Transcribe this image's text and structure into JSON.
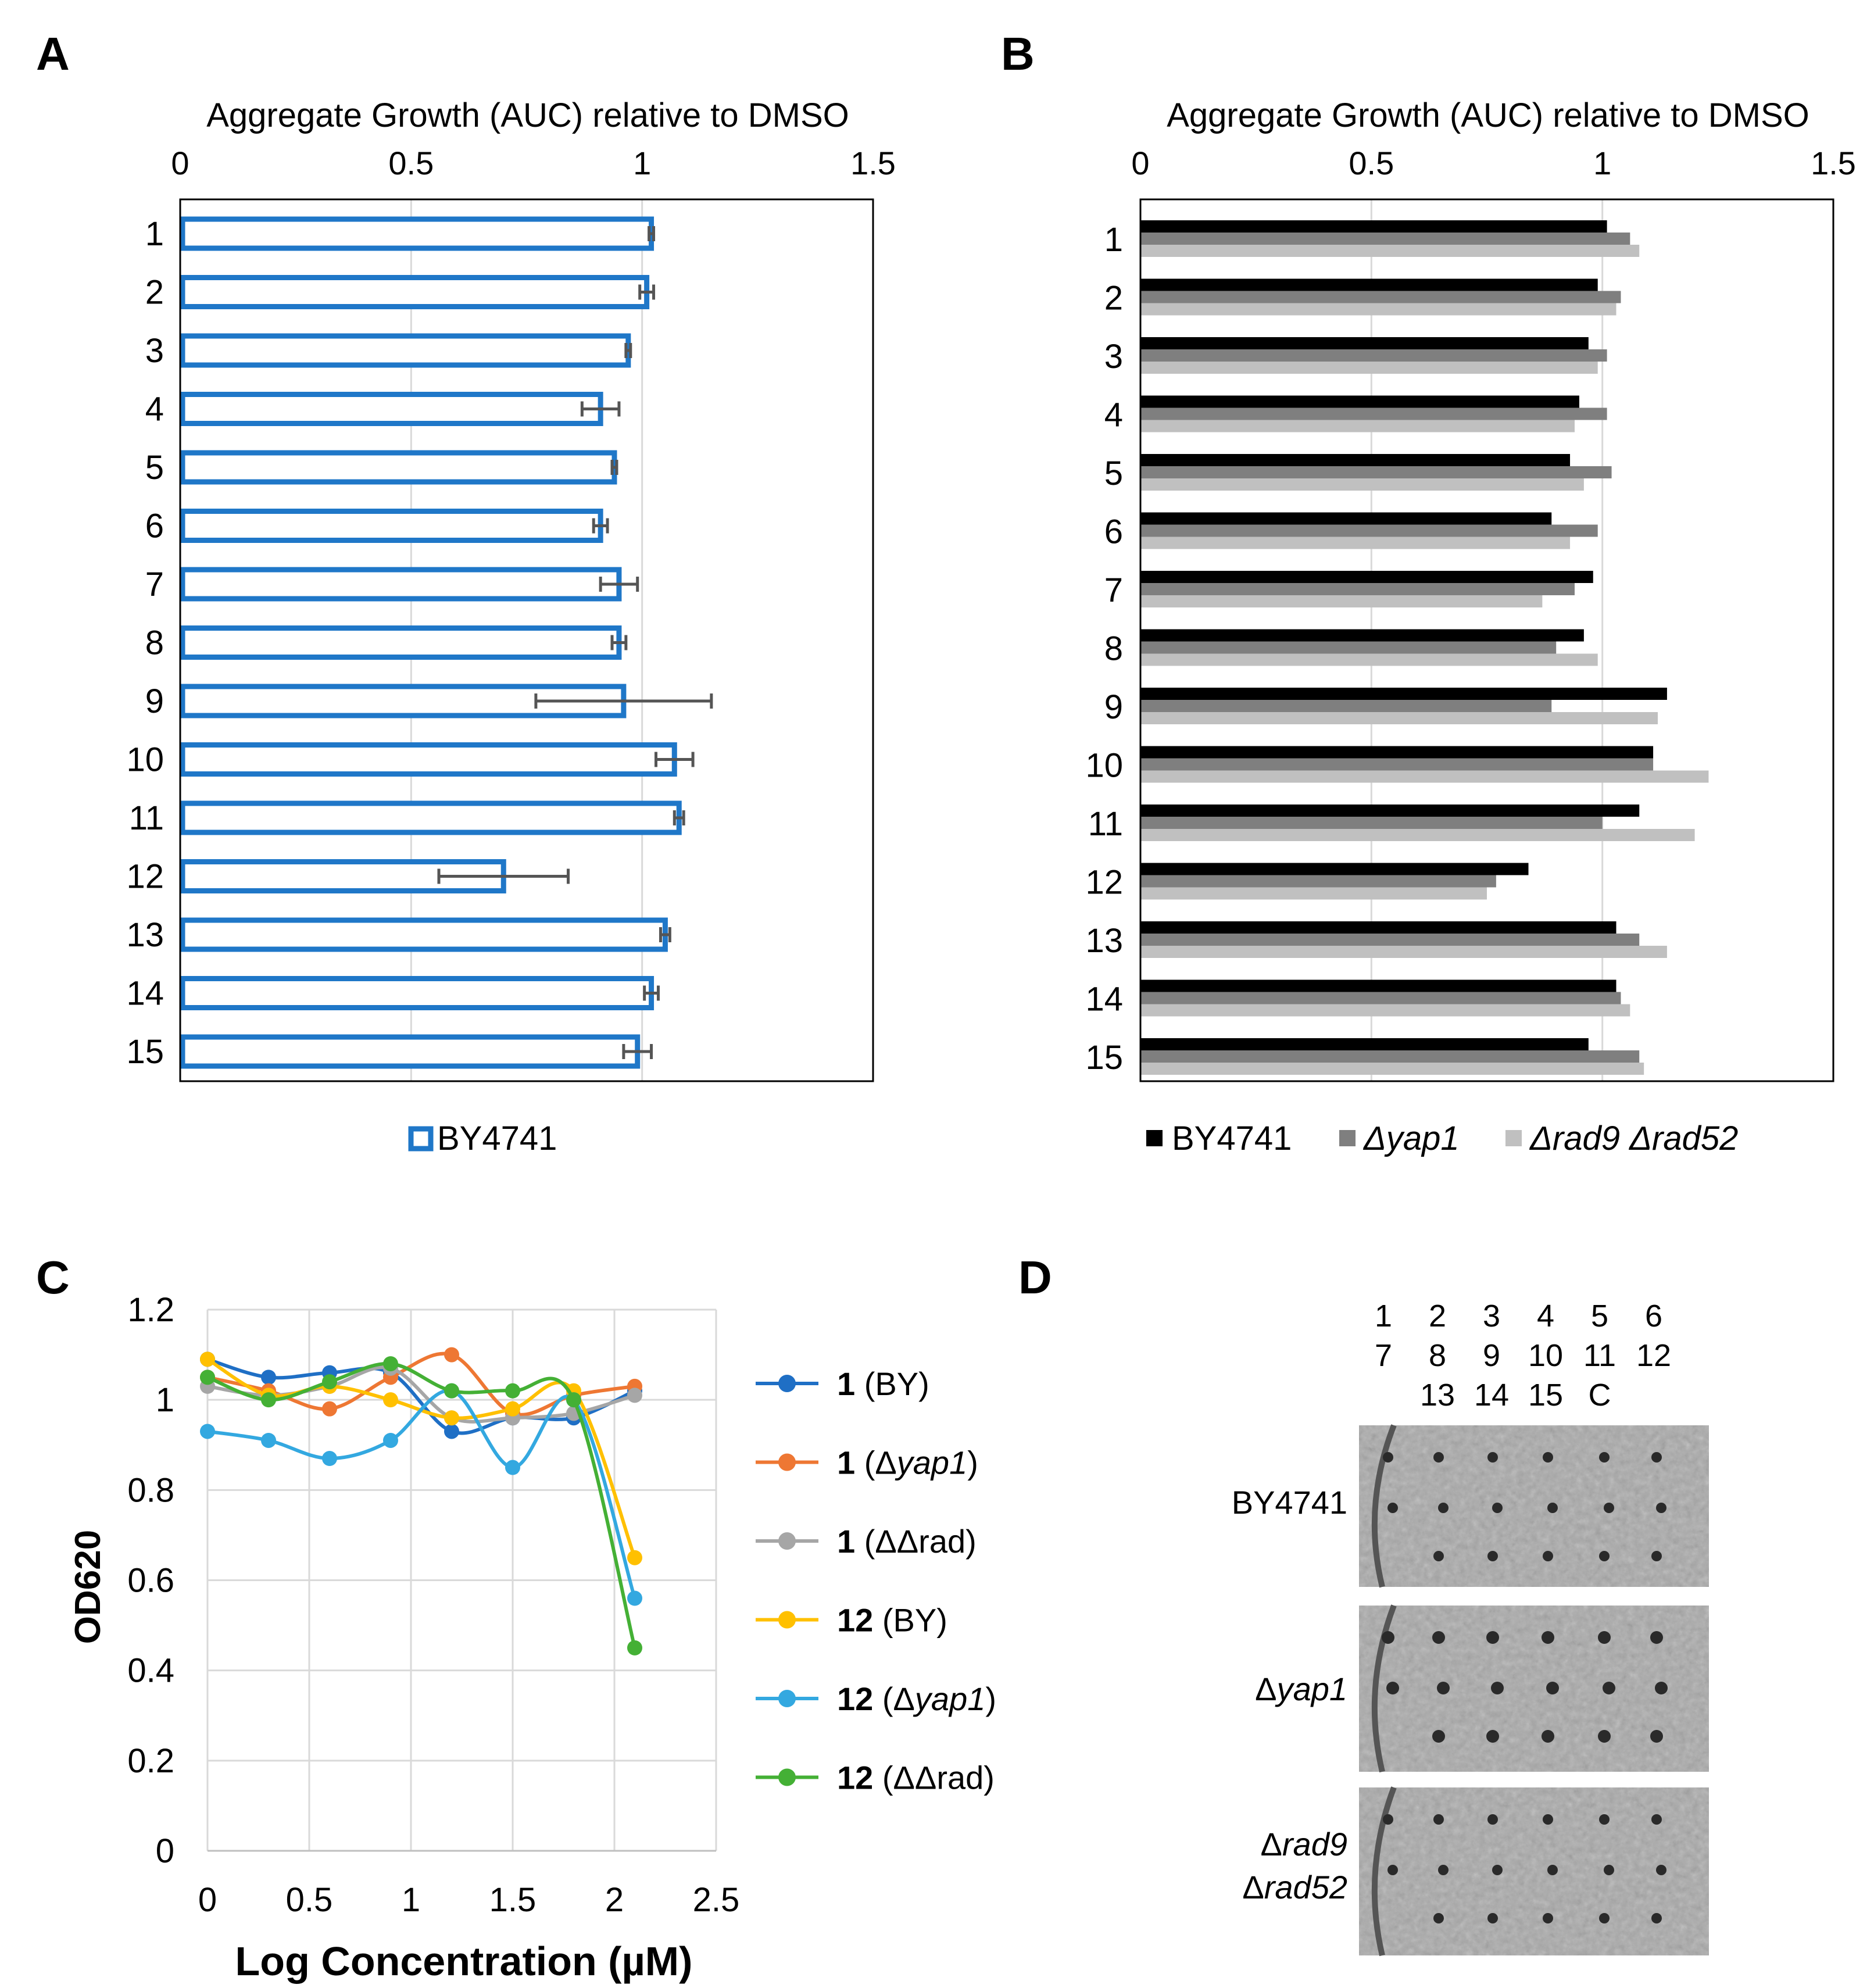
{
  "colors": {
    "blue": "#1f77c8",
    "black": "#000000",
    "darkgray": "#7f7f7f",
    "lightgray": "#c0c0c0",
    "errorbar": "#555555",
    "grid": "#d9d9d9",
    "series_1_by": "#1f6fc5",
    "series_1_yap1": "#ee7733",
    "series_1_ddrad": "#a6a6a6",
    "series_12_by": "#ffc000",
    "series_12_yap1": "#33a8e0",
    "series_12_ddrad": "#44b035"
  },
  "panels": {
    "a": {
      "label": "A"
    },
    "b": {
      "label": "B"
    },
    "c": {
      "label": "C"
    },
    "d": {
      "label": "D"
    }
  },
  "chart_data": [
    {
      "id": "A",
      "type": "bar",
      "orientation": "horizontal",
      "title": "Aggregate Growth (AUC) relative to DMSO",
      "categories": [
        "1",
        "2",
        "3",
        "4",
        "5",
        "6",
        "7",
        "8",
        "9",
        "10",
        "11",
        "12",
        "13",
        "14",
        "15"
      ],
      "xlim": [
        0,
        1.5
      ],
      "ticks": [
        0,
        0.5,
        1,
        1.5
      ],
      "tick_labels": [
        "0",
        "0.5",
        "1",
        "1.5"
      ],
      "grid": true,
      "legend": "bottom",
      "series": [
        {
          "name": "BY4741",
          "style": "outlined",
          "values": [
            1.02,
            1.01,
            0.97,
            0.91,
            0.94,
            0.91,
            0.95,
            0.95,
            0.96,
            1.07,
            1.08,
            0.7,
            1.05,
            1.02,
            0.99
          ],
          "errors": [
            0.005,
            0.015,
            0.005,
            0.04,
            0.005,
            0.015,
            0.04,
            0.015,
            0.19,
            0.04,
            0.01,
            0.14,
            0.01,
            0.015,
            0.03
          ]
        }
      ]
    },
    {
      "id": "B",
      "type": "bar",
      "orientation": "horizontal",
      "title": "Aggregate Growth (AUC) relative to DMSO",
      "categories": [
        "1",
        "2",
        "3",
        "4",
        "5",
        "6",
        "7",
        "8",
        "9",
        "10",
        "11",
        "12",
        "13",
        "14",
        "15"
      ],
      "xlim": [
        0,
        1.5
      ],
      "ticks": [
        0,
        0.5,
        1,
        1.5
      ],
      "tick_labels": [
        "0",
        "0.5",
        "1",
        "1.5"
      ],
      "grid": true,
      "legend": "bottom",
      "series": [
        {
          "name": "BY4741",
          "values": [
            1.01,
            0.99,
            0.97,
            0.95,
            0.93,
            0.89,
            0.98,
            0.96,
            1.14,
            1.11,
            1.08,
            0.84,
            1.03,
            1.03,
            0.97
          ]
        },
        {
          "name": "Δyap1",
          "italic": true,
          "values": [
            1.06,
            1.04,
            1.01,
            1.01,
            1.02,
            0.99,
            0.94,
            0.9,
            0.89,
            1.11,
            1.0,
            0.77,
            1.08,
            1.04,
            1.08
          ]
        },
        {
          "name": "Δrad9 Δrad52",
          "italic": true,
          "values": [
            1.08,
            1.03,
            0.99,
            0.94,
            0.96,
            0.93,
            0.87,
            0.99,
            1.12,
            1.23,
            1.2,
            0.75,
            1.14,
            1.06,
            1.09
          ]
        }
      ]
    },
    {
      "id": "C",
      "type": "line",
      "title": "",
      "xlabel": "Log Concentration (µM)",
      "ylabel": "OD620",
      "xlim": [
        0,
        2.5
      ],
      "ylim": [
        0,
        1.2
      ],
      "xticks": [
        0,
        0.5,
        1,
        1.5,
        2,
        2.5
      ],
      "xtick_labels": [
        "0",
        "0.5",
        "1",
        "1.5",
        "2",
        "2.5"
      ],
      "yticks": [
        0,
        0.2,
        0.4,
        0.6,
        0.8,
        1,
        1.2
      ],
      "ytick_labels": [
        "0",
        "0.2",
        "0.4",
        "0.6",
        "0.8",
        "1",
        "1.2"
      ],
      "grid": true,
      "legend": "right",
      "x": [
        0,
        0.3,
        0.6,
        0.9,
        1.2,
        1.5,
        1.8,
        2.1
      ],
      "series": [
        {
          "name": "1 (BY)",
          "compound": "1",
          "strain": " (BY)",
          "color_key": "series_1_by",
          "values": [
            1.09,
            1.05,
            1.06,
            1.06,
            0.93,
            0.96,
            0.96,
            1.02
          ]
        },
        {
          "name": "1 (Δyap1)",
          "compound": "1",
          "strain_pre": " (Δ",
          "strain_italic": "yap1",
          "strain_post": ")",
          "color_key": "series_1_yap1",
          "values": [
            1.05,
            1.02,
            0.98,
            1.05,
            1.1,
            0.97,
            1.01,
            1.03
          ]
        },
        {
          "name": "1 (ΔΔrad)",
          "compound": "1",
          "strain": " (ΔΔrad)",
          "color_key": "series_1_ddrad",
          "values": [
            1.03,
            1.01,
            1.03,
            1.07,
            0.96,
            0.96,
            0.97,
            1.01
          ]
        },
        {
          "name": "12 (BY)",
          "compound": "12",
          "strain": " (BY)",
          "color_key": "series_12_by",
          "values": [
            1.09,
            1.01,
            1.03,
            1.0,
            0.96,
            0.98,
            1.02,
            0.65
          ]
        },
        {
          "name": "12 (Δyap1)",
          "compound": "12",
          "strain_pre": " (Δ",
          "strain_italic": "yap1",
          "strain_post": ")",
          "color_key": "series_12_yap1",
          "values": [
            0.93,
            0.91,
            0.87,
            0.91,
            1.02,
            0.85,
            1.0,
            0.56
          ]
        },
        {
          "name": "12 (ΔΔrad)",
          "compound": "12",
          "strain": " (ΔΔrad)",
          "color_key": "series_12_ddrad",
          "values": [
            1.05,
            1.0,
            1.04,
            1.08,
            1.02,
            1.02,
            1.0,
            0.45
          ]
        }
      ]
    }
  ],
  "plates": {
    "column_labels": [
      [
        "1",
        "2",
        "3",
        "4",
        "5",
        "6"
      ],
      [
        "7",
        "8",
        "9",
        "10",
        "11",
        "12"
      ],
      [
        "13",
        "14",
        "15",
        "C"
      ]
    ],
    "rows": [
      {
        "label": "BY4741"
      },
      {
        "label_pre": "Δ",
        "label_italic": "yap1"
      },
      {
        "label_line1_pre": "Δ",
        "label_line1_italic": "rad9",
        "label_line2_pre": "Δ",
        "label_line2_italic": "rad52"
      }
    ]
  }
}
